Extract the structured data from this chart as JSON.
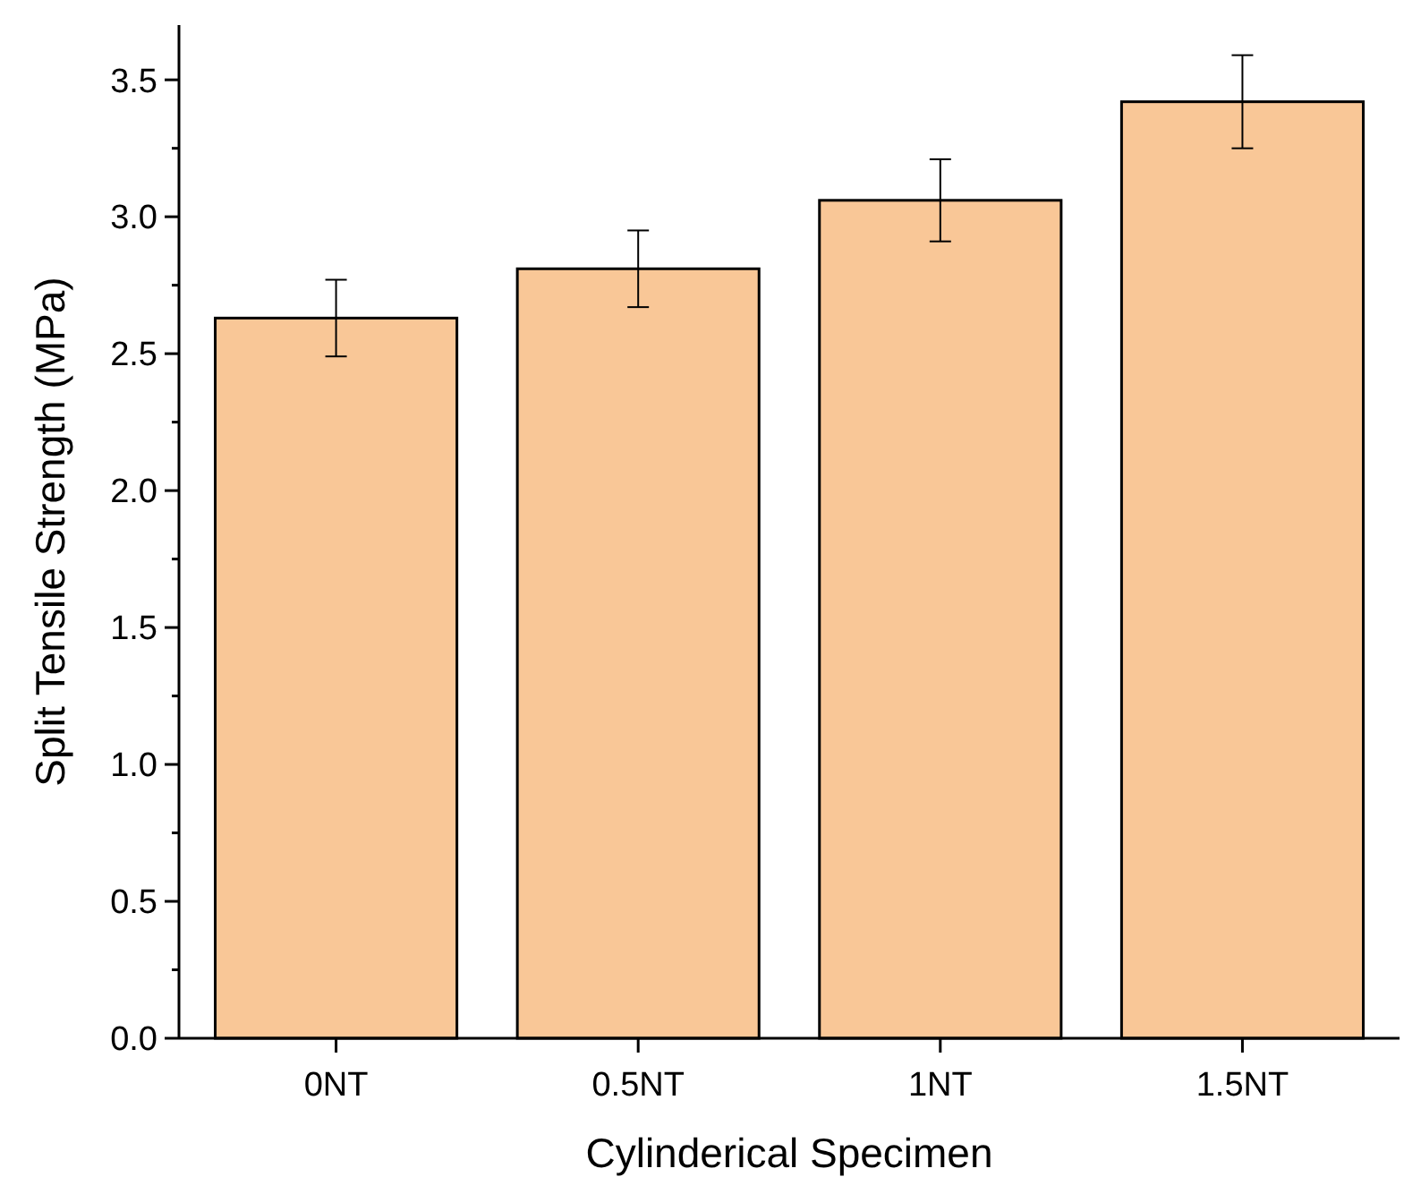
{
  "chart_data": {
    "type": "bar",
    "xlabel": "Cylinderical Specimen",
    "ylabel": "Split Tensile Strength (MPa)",
    "categories": [
      "0NT",
      "0.5NT",
      "1NT",
      "1.5NT"
    ],
    "values": [
      2.63,
      2.81,
      3.06,
      3.42
    ],
    "errors": [
      0.14,
      0.14,
      0.15,
      0.17
    ],
    "color": "#f9c797",
    "ylim": [
      0,
      3.7
    ],
    "yticks": [
      {
        "value": 0,
        "label": "0.0"
      },
      0.5,
      {
        "value": 1,
        "label": "1.0"
      },
      1.5,
      {
        "value": 2,
        "label": "2.0"
      },
      2.5,
      {
        "value": 3,
        "label": "3.0"
      },
      3.5
    ]
  }
}
